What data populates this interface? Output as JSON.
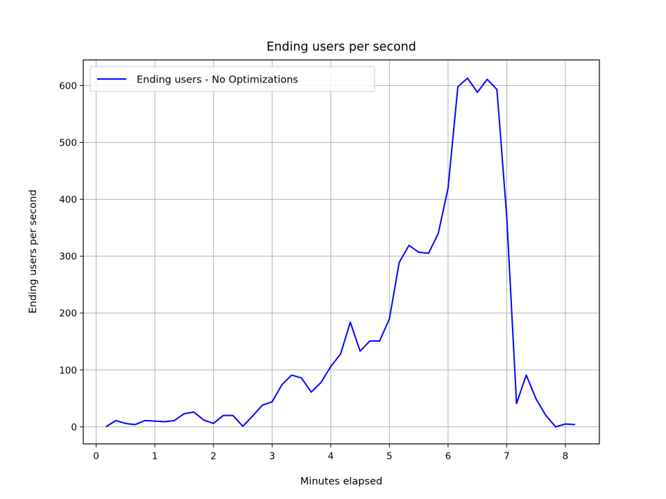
{
  "chart_data": {
    "type": "line",
    "title": "Ending users per second",
    "xlabel": "Minutes elapsed",
    "ylabel": "Ending users per second",
    "xlim": [
      -0.22,
      8.58
    ],
    "ylim": [
      -30,
      645
    ],
    "xticks": [
      0,
      1,
      2,
      3,
      4,
      5,
      6,
      7,
      8
    ],
    "yticks": [
      0,
      100,
      200,
      300,
      400,
      500,
      600
    ],
    "grid": true,
    "legend_position": "top-left",
    "series": [
      {
        "name": "Ending users - No Optimizations",
        "color": "#0000ff",
        "x": [
          0.167,
          0.333,
          0.5,
          0.667,
          0.833,
          1.0,
          1.167,
          1.333,
          1.5,
          1.667,
          1.833,
          2.0,
          2.167,
          2.333,
          2.5,
          2.667,
          2.833,
          3.0,
          3.167,
          3.333,
          3.5,
          3.667,
          3.833,
          4.0,
          4.167,
          4.333,
          4.5,
          4.667,
          4.833,
          5.0,
          5.167,
          5.333,
          5.5,
          5.667,
          5.833,
          6.0,
          6.167,
          6.333,
          6.5,
          6.667,
          6.833,
          7.0,
          7.167,
          7.333,
          7.5,
          7.667,
          7.833,
          8.0,
          8.167
        ],
        "y": [
          0,
          11,
          6,
          4,
          11,
          10,
          9,
          11,
          23,
          26,
          12,
          6,
          20,
          20,
          1,
          19,
          38,
          44,
          74,
          91,
          86,
          61,
          78,
          106,
          128,
          184,
          133,
          151,
          151,
          190,
          289,
          319,
          307,
          305,
          340,
          420,
          598,
          613,
          588,
          611,
          593,
          370,
          41,
          91,
          49,
          20,
          0,
          5,
          4
        ]
      }
    ]
  }
}
